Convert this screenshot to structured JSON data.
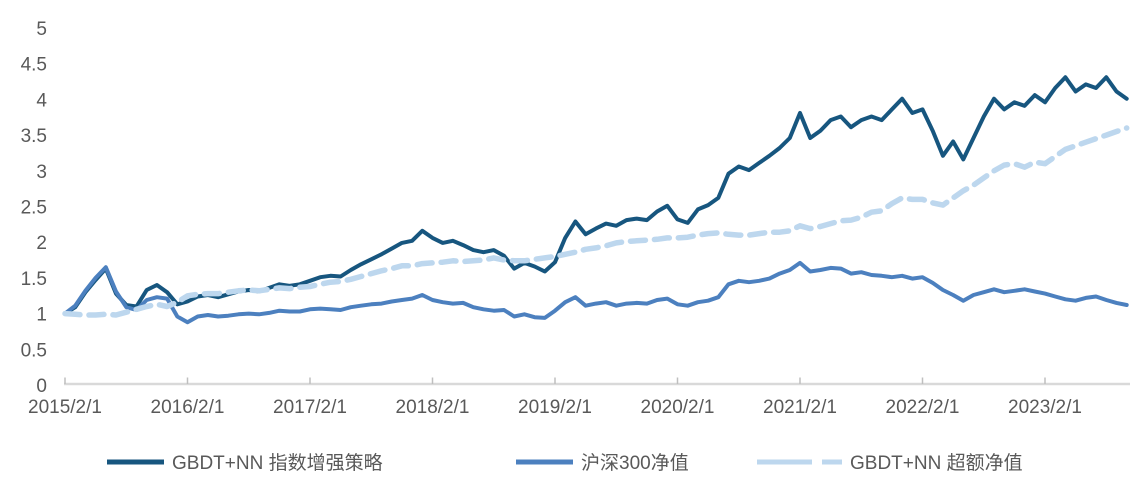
{
  "chart_data": {
    "type": "line",
    "title": "",
    "grid": "off",
    "legend_position": "bottom",
    "x_axis": {
      "start_month": "2015/2",
      "end_month": "2023/10",
      "months_per_point": 1,
      "tick_months": [
        0,
        12,
        24,
        36,
        48,
        60,
        72,
        84,
        96
      ],
      "tick_labels": [
        "2015/2/1",
        "2016/2/1",
        "2017/2/1",
        "2018/2/1",
        "2019/2/1",
        "2020/2/1",
        "2021/2/1",
        "2022/2/1",
        "2023/2/1"
      ]
    },
    "y_axis": {
      "min": 0,
      "max": 5,
      "ticks": [
        0,
        0.5,
        1,
        1.5,
        2,
        2.5,
        3,
        3.5,
        4,
        4.5,
        5
      ],
      "tick_labels": [
        "0",
        "0.5",
        "1",
        "1.5",
        "2",
        "2.5",
        "3",
        "3.5",
        "4",
        "4.5",
        "5"
      ]
    },
    "series": [
      {
        "name": "GBDT+NN 指数增强策略",
        "color": "#17567F",
        "style": "solid",
        "width": 4,
        "values": [
          1.0,
          1.09,
          1.3,
          1.47,
          1.63,
          1.28,
          1.12,
          1.1,
          1.33,
          1.4,
          1.3,
          1.13,
          1.17,
          1.24,
          1.26,
          1.23,
          1.27,
          1.31,
          1.33,
          1.31,
          1.36,
          1.41,
          1.39,
          1.41,
          1.46,
          1.51,
          1.53,
          1.52,
          1.61,
          1.69,
          1.76,
          1.83,
          1.91,
          1.99,
          2.02,
          2.16,
          2.06,
          1.99,
          2.02,
          1.96,
          1.89,
          1.86,
          1.89,
          1.81,
          1.63,
          1.71,
          1.66,
          1.59,
          1.72,
          2.06,
          2.29,
          2.11,
          2.19,
          2.26,
          2.23,
          2.31,
          2.33,
          2.31,
          2.43,
          2.51,
          2.32,
          2.27,
          2.46,
          2.52,
          2.62,
          2.96,
          3.06,
          3.01,
          3.11,
          3.21,
          3.32,
          3.46,
          3.81,
          3.46,
          3.56,
          3.71,
          3.76,
          3.61,
          3.71,
          3.76,
          3.71,
          3.86,
          4.01,
          3.81,
          3.86,
          3.56,
          3.21,
          3.41,
          3.16,
          3.46,
          3.76,
          4.01,
          3.86,
          3.96,
          3.91,
          4.06,
          3.96,
          4.16,
          4.31,
          4.11,
          4.21,
          4.16,
          4.31,
          4.11,
          4.01
        ]
      },
      {
        "name": "沪深300净值",
        "color": "#4C80BF",
        "style": "solid",
        "width": 4,
        "values": [
          1.0,
          1.11,
          1.32,
          1.5,
          1.65,
          1.31,
          1.09,
          1.05,
          1.19,
          1.23,
          1.21,
          0.96,
          0.88,
          0.96,
          0.98,
          0.96,
          0.97,
          0.99,
          1.0,
          0.99,
          1.01,
          1.04,
          1.03,
          1.03,
          1.06,
          1.07,
          1.06,
          1.05,
          1.09,
          1.11,
          1.13,
          1.14,
          1.17,
          1.19,
          1.21,
          1.26,
          1.19,
          1.16,
          1.14,
          1.15,
          1.09,
          1.06,
          1.04,
          1.05,
          0.96,
          0.99,
          0.95,
          0.94,
          1.04,
          1.16,
          1.23,
          1.11,
          1.14,
          1.16,
          1.11,
          1.14,
          1.15,
          1.14,
          1.19,
          1.21,
          1.13,
          1.11,
          1.16,
          1.18,
          1.23,
          1.41,
          1.46,
          1.44,
          1.46,
          1.49,
          1.56,
          1.61,
          1.71,
          1.59,
          1.61,
          1.64,
          1.63,
          1.56,
          1.58,
          1.54,
          1.53,
          1.51,
          1.53,
          1.49,
          1.51,
          1.43,
          1.33,
          1.26,
          1.18,
          1.26,
          1.3,
          1.34,
          1.3,
          1.32,
          1.34,
          1.31,
          1.28,
          1.24,
          1.2,
          1.18,
          1.22,
          1.24,
          1.19,
          1.15,
          1.12
        ]
      },
      {
        "name": "GBDT+NN 超额净值",
        "color": "#BDD7EE",
        "style": "dashed",
        "width": 5.5,
        "values": [
          1.0,
          0.99,
          0.98,
          0.98,
          0.99,
          0.98,
          1.02,
          1.06,
          1.1,
          1.13,
          1.1,
          1.16,
          1.25,
          1.27,
          1.28,
          1.28,
          1.3,
          1.32,
          1.33,
          1.32,
          1.34,
          1.36,
          1.35,
          1.37,
          1.38,
          1.41,
          1.44,
          1.45,
          1.48,
          1.52,
          1.56,
          1.6,
          1.63,
          1.67,
          1.67,
          1.7,
          1.71,
          1.72,
          1.74,
          1.73,
          1.74,
          1.75,
          1.78,
          1.75,
          1.74,
          1.74,
          1.76,
          1.78,
          1.8,
          1.83,
          1.86,
          1.9,
          1.92,
          1.95,
          1.99,
          2.01,
          2.02,
          2.03,
          2.04,
          2.06,
          2.06,
          2.07,
          2.1,
          2.12,
          2.13,
          2.11,
          2.1,
          2.1,
          2.12,
          2.14,
          2.14,
          2.16,
          2.23,
          2.19,
          2.22,
          2.26,
          2.3,
          2.31,
          2.35,
          2.42,
          2.44,
          2.54,
          2.62,
          2.6,
          2.6,
          2.55,
          2.52,
          2.62,
          2.72,
          2.8,
          2.9,
          3.0,
          3.08,
          3.1,
          3.05,
          3.12,
          3.1,
          3.2,
          3.3,
          3.35,
          3.4,
          3.45,
          3.5,
          3.55,
          3.6
        ]
      }
    ]
  },
  "colors": {
    "background": "#FFFFFF",
    "axis_line": "#D9D9D9",
    "tick": "#BFBFBF",
    "axis_text": "#595959"
  }
}
